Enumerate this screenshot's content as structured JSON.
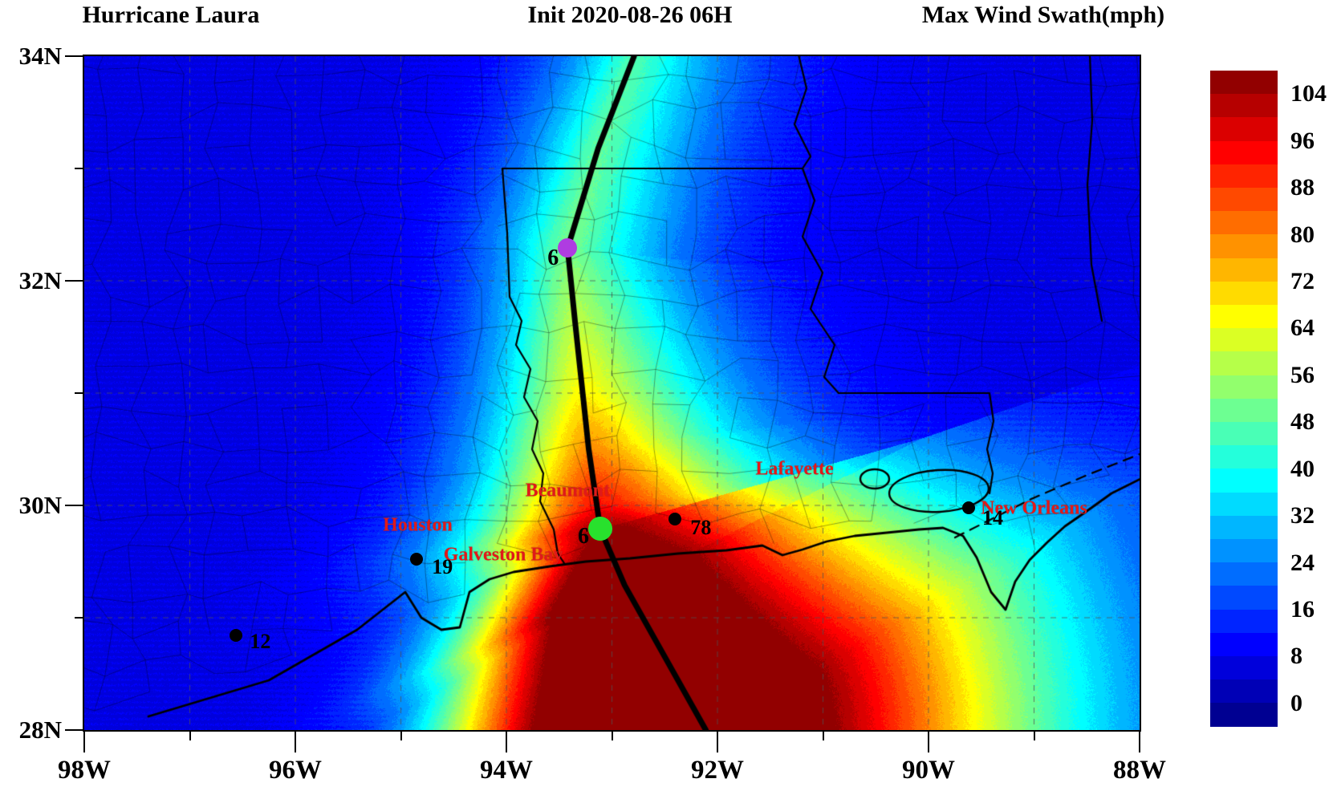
{
  "titles": {
    "left": "Hurricane Laura",
    "center": "Init  2020-08-26 06H",
    "right": "Max Wind Swath(mph)"
  },
  "axes": {
    "lat_ticks": [
      {
        "label": "34N",
        "value": 34
      },
      {
        "label": "32N",
        "value": 32
      },
      {
        "label": "30N",
        "value": 30
      },
      {
        "label": "28N",
        "value": 28
      }
    ],
    "lat_minor": [
      33,
      31,
      29
    ],
    "lon_ticks": [
      {
        "label": "98W",
        "value": -98
      },
      {
        "label": "96W",
        "value": -96
      },
      {
        "label": "94W",
        "value": -94
      },
      {
        "label": "92W",
        "value": -92
      },
      {
        "label": "90W",
        "value": -90
      },
      {
        "label": "88W",
        "value": -88
      }
    ],
    "lon_minor": [
      -97,
      -95,
      -93,
      -91,
      -89
    ],
    "lat_range": [
      28,
      34
    ],
    "lon_range": [
      -98,
      -88
    ]
  },
  "colorbar": {
    "tick_labels": [
      104,
      96,
      88,
      80,
      72,
      64,
      56,
      48,
      40,
      32,
      24,
      16,
      8,
      0
    ],
    "value_min": -4,
    "value_max": 108,
    "step": 4,
    "colors": [
      "#000092",
      "#0000B6",
      "#0000DB",
      "#0000FF",
      "#0024FF",
      "#0049FF",
      "#006DFF",
      "#0092FF",
      "#00B6FF",
      "#00DBFF",
      "#00FFFF",
      "#24FFDB",
      "#49FFB6",
      "#6DFF92",
      "#92FF6D",
      "#B6FF49",
      "#DBFF24",
      "#FFFF00",
      "#FFDB00",
      "#FFB600",
      "#FF9200",
      "#FF6D00",
      "#FF4900",
      "#FF2400",
      "#FF0000",
      "#DB0000",
      "#B60000",
      "#920000"
    ]
  },
  "map_annotations": {
    "city_label_color": "#E01A1A",
    "cities": [
      {
        "name": "Houston",
        "lon": -94.84,
        "lat": 29.82
      },
      {
        "name": "Galveston Bay",
        "lon": -94.03,
        "lat": 29.56
      },
      {
        "name": "Beaumont",
        "lon": -93.42,
        "lat": 30.13
      },
      {
        "name": "Lafayette",
        "lon": -91.27,
        "lat": 30.32
      },
      {
        "name": "New Orleans",
        "lon": -89.0,
        "lat": 29.97
      }
    ],
    "observations": [
      {
        "value": "19",
        "lon": -94.85,
        "lat": 29.52,
        "label_offset": [
          32,
          10
        ]
      },
      {
        "value": "12",
        "lon": -96.56,
        "lat": 28.84,
        "label_offset": [
          30,
          8
        ]
      },
      {
        "value": "78",
        "lon": -92.4,
        "lat": 29.88,
        "label_offset": [
          32,
          11
        ]
      },
      {
        "value": "14",
        "lon": -89.62,
        "lat": 29.98,
        "label_offset": [
          30,
          13
        ]
      }
    ],
    "track": {
      "points_lon_lat": [
        [
          -92.79,
          34.0
        ],
        [
          -93.13,
          33.18
        ],
        [
          -93.42,
          32.29
        ],
        [
          -93.35,
          31.64
        ],
        [
          -93.22,
          30.5
        ],
        [
          -93.11,
          29.79
        ],
        [
          -92.88,
          29.29
        ],
        [
          -92.11,
          28.0
        ]
      ],
      "markers": [
        {
          "label": "6",
          "color": "#AF3CE1",
          "lon": -93.42,
          "lat": 32.29,
          "radius": 12,
          "label_offset": [
            -18,
            13
          ]
        },
        {
          "label": "6",
          "color": "#28E12D",
          "lon": -93.11,
          "lat": 29.79,
          "radius": 15,
          "label_offset": [
            -21,
            10
          ]
        }
      ]
    }
  },
  "chart_data": {
    "type": "heatmap",
    "title": "Hurricane Laura",
    "subtitle": "Init 2020-08-26 06H",
    "value_label": "Max Wind Swath(mph)",
    "x_axis": {
      "ticks": [
        "98W",
        "96W",
        "94W",
        "92W",
        "90W",
        "88W"
      ],
      "range_deg": [
        -98,
        -88
      ]
    },
    "y_axis": {
      "ticks": [
        "28N",
        "30N",
        "32N",
        "34N"
      ],
      "range_deg": [
        28,
        34
      ]
    },
    "colorbar_ticks_mph": [
      0,
      8,
      16,
      24,
      32,
      40,
      48,
      56,
      64,
      72,
      80,
      88,
      96,
      104
    ],
    "colorbar_step_mph": 4,
    "swath_peak_mph": "over 104 along the track at and south of landfall",
    "storm_track_lon_lat": [
      [
        -92.79,
        34.0
      ],
      [
        -93.13,
        33.18
      ],
      [
        -93.42,
        32.29
      ],
      [
        -93.35,
        31.64
      ],
      [
        -93.22,
        30.5
      ],
      [
        -93.11,
        29.79
      ],
      [
        -92.88,
        29.29
      ],
      [
        -92.11,
        28.0
      ]
    ],
    "track_position_markers": [
      {
        "label": "6",
        "lon": -93.42,
        "lat": 32.29,
        "marker_color": "#AF3CE1"
      },
      {
        "label": "6",
        "lon": -93.11,
        "lat": 29.79,
        "marker_color": "#28E12D"
      }
    ],
    "station_max_wind_mph": [
      {
        "value": 19,
        "lon": -94.85,
        "lat": 29.52
      },
      {
        "value": 12,
        "lon": -96.56,
        "lat": 28.84
      },
      {
        "value": 78,
        "lon": -92.4,
        "lat": 29.88
      },
      {
        "value": 14,
        "lon": -89.62,
        "lat": 29.98
      }
    ]
  }
}
